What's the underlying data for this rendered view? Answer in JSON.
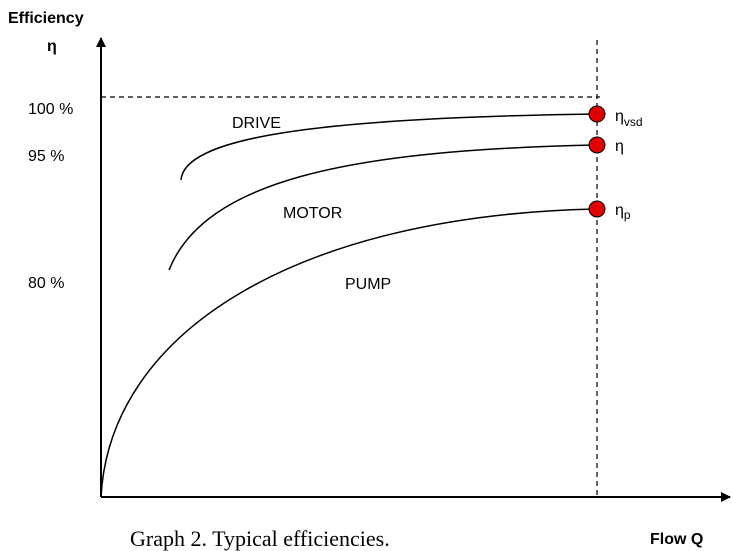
{
  "axes": {
    "y_title": "Efficiency",
    "y_symbol": "η",
    "x_title": "Flow Q",
    "y_labels": [
      "100 %",
      "95 %",
      "80 %"
    ]
  },
  "curves": [
    {
      "name": "DRIVE"
    },
    {
      "name": "MOTOR"
    },
    {
      "name": "PUMP"
    }
  ],
  "points": [
    {
      "symbol": "η",
      "subscript": "vsd"
    },
    {
      "symbol": "η"
    },
    {
      "symbol": "η",
      "subscript": "p"
    }
  ],
  "caption": "Graph 2. Typical efficiencies."
}
